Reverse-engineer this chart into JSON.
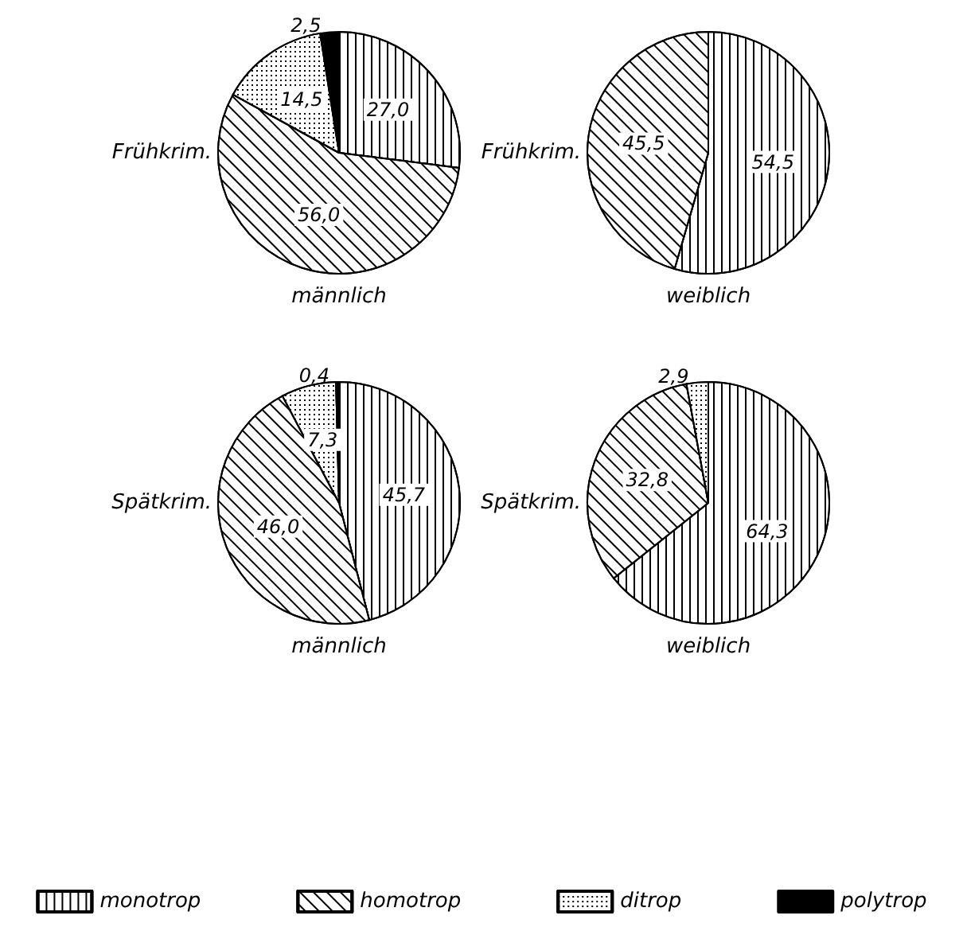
{
  "chart_data": [
    {
      "type": "pie",
      "xlabel": "männlich",
      "ylabel": "Frühkrim.",
      "categories": [
        "monotrop",
        "homotrop",
        "ditrop",
        "polytrop"
      ],
      "values": [
        27.0,
        56.0,
        14.5,
        2.5
      ],
      "value_labels": [
        "27,0",
        "56,0",
        "14,5",
        "2,5"
      ],
      "colors": [
        "#000000",
        "#000000",
        "#000000",
        "#000000"
      ],
      "legend": "bottom"
    },
    {
      "type": "pie",
      "xlabel": "weiblich",
      "ylabel": "Frühkrim.",
      "values": [
        54.5,
        45.5
      ],
      "value_labels": [
        "54,5",
        "45,5"
      ],
      "colors": [
        "#000000",
        "#000000"
      ]
    },
    {
      "type": "pie",
      "xlabel": "männlich",
      "ylabel": "Spätkrim.",
      "values": [
        45.7,
        46.0,
        7.3,
        0.4
      ],
      "value_labels": [
        "45,7",
        "46,0",
        "7,3",
        "0,4"
      ],
      "colors": [
        "#000000",
        "#000000",
        "#000000",
        "#000000"
      ]
    },
    {
      "type": "pie",
      "xlabel": "weiblich",
      "ylabel": "Spätkrim.",
      "values": [
        64.3,
        32.8,
        2.9
      ],
      "value_labels": [
        "64,3",
        "32,8",
        "2,9"
      ],
      "colors": [
        "#000000",
        "#000000",
        "#000000"
      ]
    }
  ]
}
